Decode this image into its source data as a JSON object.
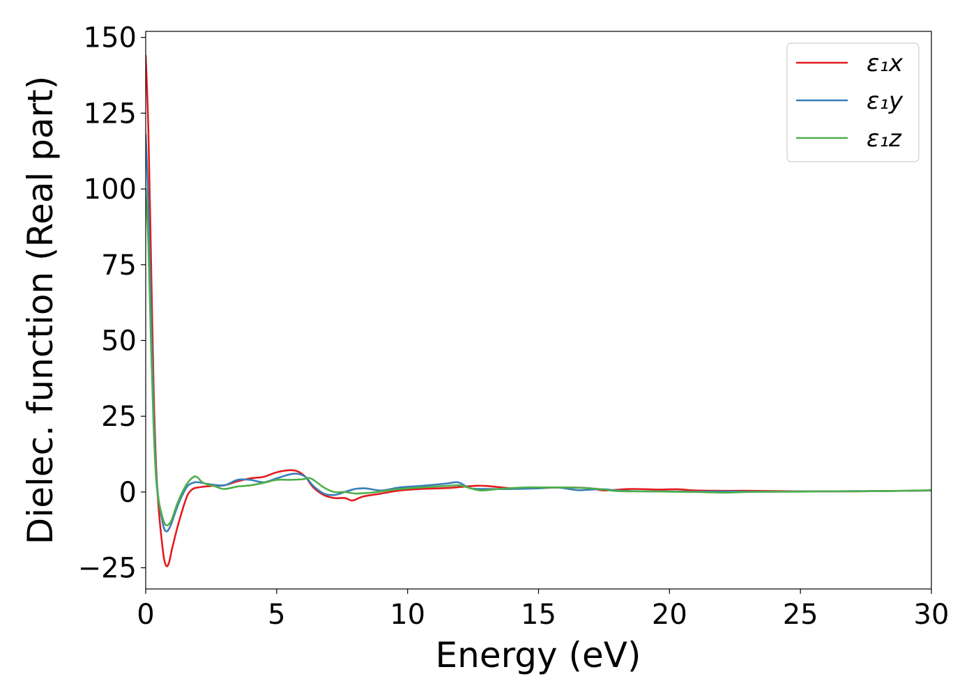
{
  "chart_data": {
    "type": "line",
    "xlabel": "Energy (eV)",
    "ylabel": "Dielec. function (Real part)",
    "xlim": [
      0,
      30
    ],
    "ylim": [
      -32,
      152
    ],
    "xticks": [
      0,
      5,
      10,
      15,
      20,
      25,
      30
    ],
    "yticks": [
      -25,
      0,
      25,
      50,
      75,
      100,
      125,
      150
    ],
    "xtick_labels": [
      "0",
      "5",
      "10",
      "15",
      "20",
      "25",
      "30"
    ],
    "ytick_labels": [
      "−25",
      "0",
      "25",
      "50",
      "75",
      "100",
      "125",
      "150"
    ],
    "grid": false,
    "legend_position": "top-right",
    "series": [
      {
        "name": "ε₁x",
        "color": "#e41a1c",
        "x": [
          0.0,
          0.1,
          0.2,
          0.3,
          0.4,
          0.5,
          0.6,
          0.7,
          0.8,
          0.9,
          1.0,
          1.2,
          1.4,
          1.6,
          1.8,
          2.0,
          2.5,
          3.0,
          3.5,
          4.0,
          4.5,
          5.0,
          5.5,
          5.8,
          6.1,
          6.4,
          6.8,
          7.2,
          7.6,
          7.9,
          8.3,
          9.0,
          9.7,
          10.5,
          11.5,
          12.5,
          13.0,
          14.0,
          15.0,
          16.0,
          17.0,
          17.5,
          18.5,
          19.5,
          20.3,
          21.0,
          22.0,
          23.0,
          24.0,
          25.0,
          26.0,
          27.0,
          28.0,
          29.0,
          30.0
        ],
        "values": [
          144,
          120,
          78,
          35,
          8,
          -6,
          -15,
          -22,
          -24.5,
          -23,
          -19,
          -12,
          -6,
          -1,
          1,
          1.5,
          2,
          2.2,
          3.5,
          4.5,
          5,
          6.5,
          7.2,
          6.8,
          5,
          1.5,
          -1,
          -2,
          -2,
          -2.8,
          -1.5,
          -0.5,
          0.5,
          1,
          1.3,
          2,
          2,
          1.2,
          1.3,
          1.5,
          1.2,
          0.5,
          1,
          0.8,
          0.9,
          0.5,
          0.4,
          0.4,
          0.3,
          0.2,
          0.2,
          0.2,
          0.3,
          0.4,
          0.5
        ]
      },
      {
        "name": "ε₁y",
        "color": "#377eb8",
        "x": [
          0.0,
          0.1,
          0.2,
          0.3,
          0.4,
          0.5,
          0.6,
          0.7,
          0.8,
          0.9,
          1.0,
          1.2,
          1.4,
          1.6,
          1.8,
          2.0,
          2.5,
          3.0,
          3.5,
          4.0,
          4.5,
          5.0,
          5.5,
          5.8,
          6.1,
          6.4,
          6.8,
          7.2,
          7.6,
          8.0,
          8.4,
          9.0,
          9.7,
          10.5,
          11.5,
          11.8,
          12.0,
          12.4,
          13.0,
          14.0,
          15.0,
          15.7,
          16.5,
          17.0,
          17.5,
          18.0,
          19.0,
          20.0,
          21.0,
          22.0,
          23.0,
          24.0,
          25.0,
          26.0,
          27.0,
          28.0,
          29.0,
          30.0
        ],
        "values": [
          118,
          95,
          60,
          27,
          6,
          -3,
          -8,
          -12,
          -13,
          -12,
          -10,
          -5,
          -1,
          2,
          3,
          3.2,
          2.5,
          2.2,
          4,
          4,
          3.2,
          4.5,
          5.8,
          6,
          5,
          2,
          -0.5,
          -1,
          0,
          1,
          1.2,
          0.5,
          1.5,
          2,
          2.8,
          3.2,
          3,
          1.2,
          1,
          1,
          1.2,
          1.5,
          0.6,
          0.8,
          0.9,
          0.5,
          0.2,
          0.2,
          0.1,
          0.2,
          0.1,
          0.1,
          0.2,
          0.2,
          0.3,
          0.3,
          0.4,
          0.5
        ]
      },
      {
        "name": "ε₁z",
        "color": "#4daf4a",
        "x": [
          0.0,
          0.1,
          0.2,
          0.3,
          0.4,
          0.5,
          0.6,
          0.7,
          0.8,
          0.9,
          1.0,
          1.2,
          1.4,
          1.6,
          1.8,
          1.95,
          2.2,
          2.6,
          3.0,
          3.5,
          4.0,
          4.5,
          5.0,
          5.5,
          6.0,
          6.3,
          6.8,
          7.2,
          7.6,
          8.0,
          8.5,
          9.0,
          9.5,
          10.5,
          11.5,
          12.0,
          12.3,
          12.8,
          13.5,
          14.5,
          15.5,
          16.0,
          17.0,
          17.5,
          18.0,
          19.0,
          20.0,
          21.0,
          22.0,
          23.0,
          24.0,
          25.0,
          26.0,
          27.0,
          28.0,
          29.0,
          30.0
        ],
        "values": [
          100,
          82,
          50,
          22,
          4,
          -3,
          -7,
          -10,
          -11,
          -10.5,
          -9,
          -4,
          0,
          3,
          4.8,
          5,
          3,
          2,
          1,
          1.8,
          2.2,
          3,
          4,
          4,
          4.2,
          4.5,
          1.5,
          0,
          0,
          -0.5,
          -0.3,
          0.2,
          0.8,
          1.5,
          2,
          2.2,
          1.5,
          0.5,
          1,
          1.5,
          1.5,
          1.5,
          1.2,
          0.8,
          0.3,
          0.2,
          0.1,
          0.0,
          -0.2,
          0.0,
          0.1,
          0.1,
          0.2,
          0.2,
          0.3,
          0.4,
          0.6
        ]
      }
    ]
  }
}
